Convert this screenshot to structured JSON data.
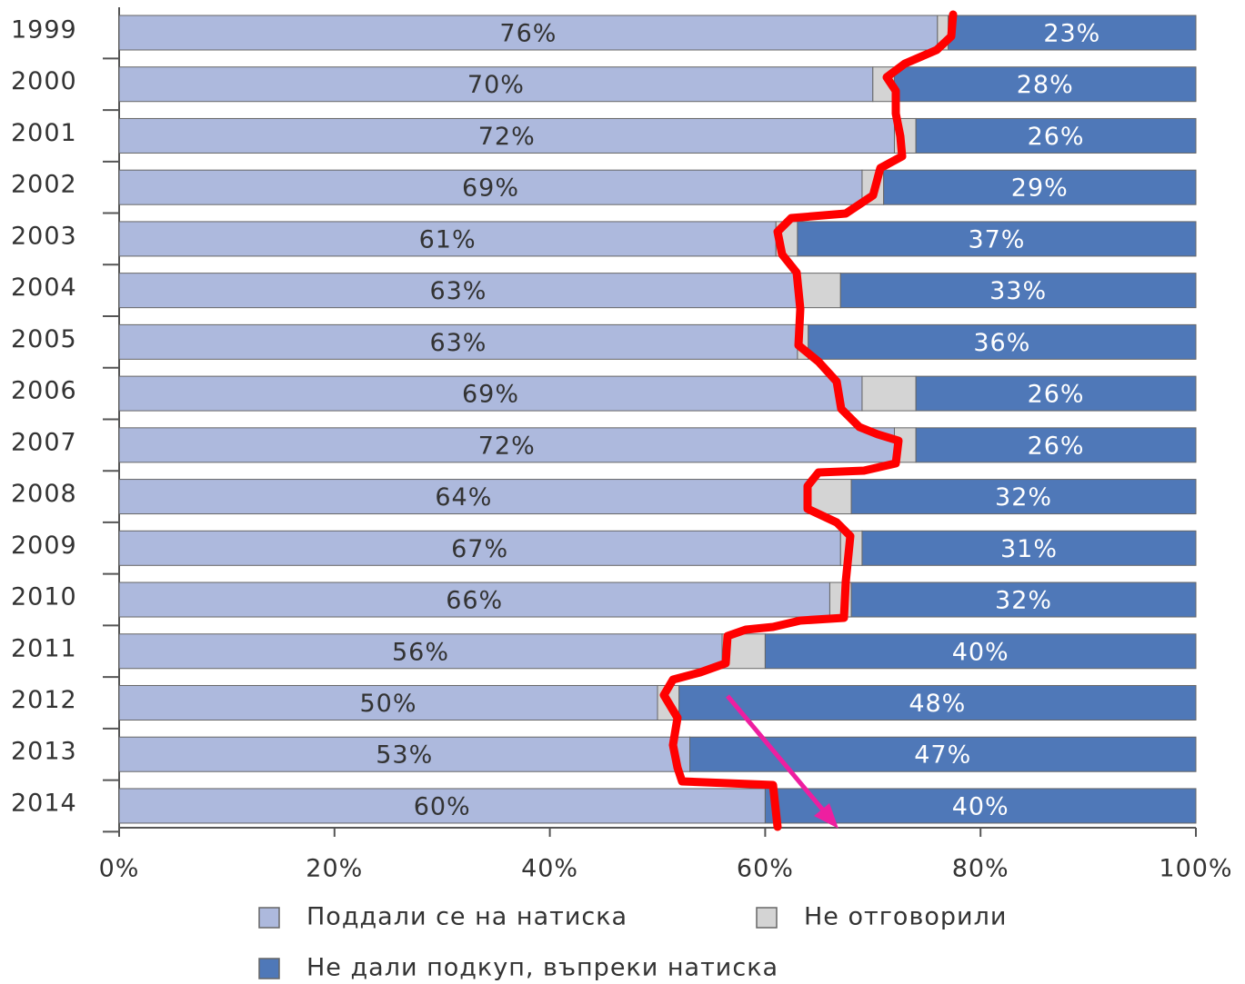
{
  "chart_data": {
    "type": "stacked_barh",
    "categories": [
      "1999",
      "2000",
      "2001",
      "2002",
      "2003",
      "2004",
      "2005",
      "2006",
      "2007",
      "2008",
      "2009",
      "2010",
      "2011",
      "2012",
      "2013",
      "2014"
    ],
    "series": [
      {
        "name": "Поддали се на натиска",
        "color": "#adb9dd",
        "values": [
          76,
          70,
          72,
          69,
          61,
          63,
          63,
          69,
          72,
          64,
          67,
          66,
          56,
          50,
          53,
          60
        ],
        "value_labels": [
          "76%",
          "70%",
          "72%",
          "69%",
          "61%",
          "63%",
          "63%",
          "69%",
          "72%",
          "64%",
          "67%",
          "66%",
          "56%",
          "50%",
          "53%",
          "60%"
        ]
      },
      {
        "name": "Не отговорили",
        "color": "#d4d4d4",
        "values": [
          1,
          2,
          2,
          2,
          2,
          4,
          1,
          5,
          2,
          4,
          2,
          2,
          4,
          2,
          0,
          0
        ]
      },
      {
        "name": "Не дали подкуп, въпреки натиска",
        "color": "#4f78b8",
        "values": [
          23,
          28,
          26,
          29,
          37,
          33,
          36,
          26,
          26,
          32,
          31,
          32,
          40,
          48,
          47,
          40
        ],
        "value_labels": [
          "23%",
          "28%",
          "26%",
          "29%",
          "37%",
          "33%",
          "36%",
          "26%",
          "26%",
          "32%",
          "31%",
          "32%",
          "40%",
          "48%",
          "47%",
          "40%"
        ]
      }
    ],
    "xlim": [
      0,
      100
    ],
    "xticks": [
      {
        "value": 0,
        "label": "0%"
      },
      {
        "value": 20,
        "label": "20%"
      },
      {
        "value": 40,
        "label": "40%"
      },
      {
        "value": 60,
        "label": "60%"
      },
      {
        "value": 80,
        "label": "80%"
      },
      {
        "value": 100,
        "label": "100%"
      }
    ]
  }
}
